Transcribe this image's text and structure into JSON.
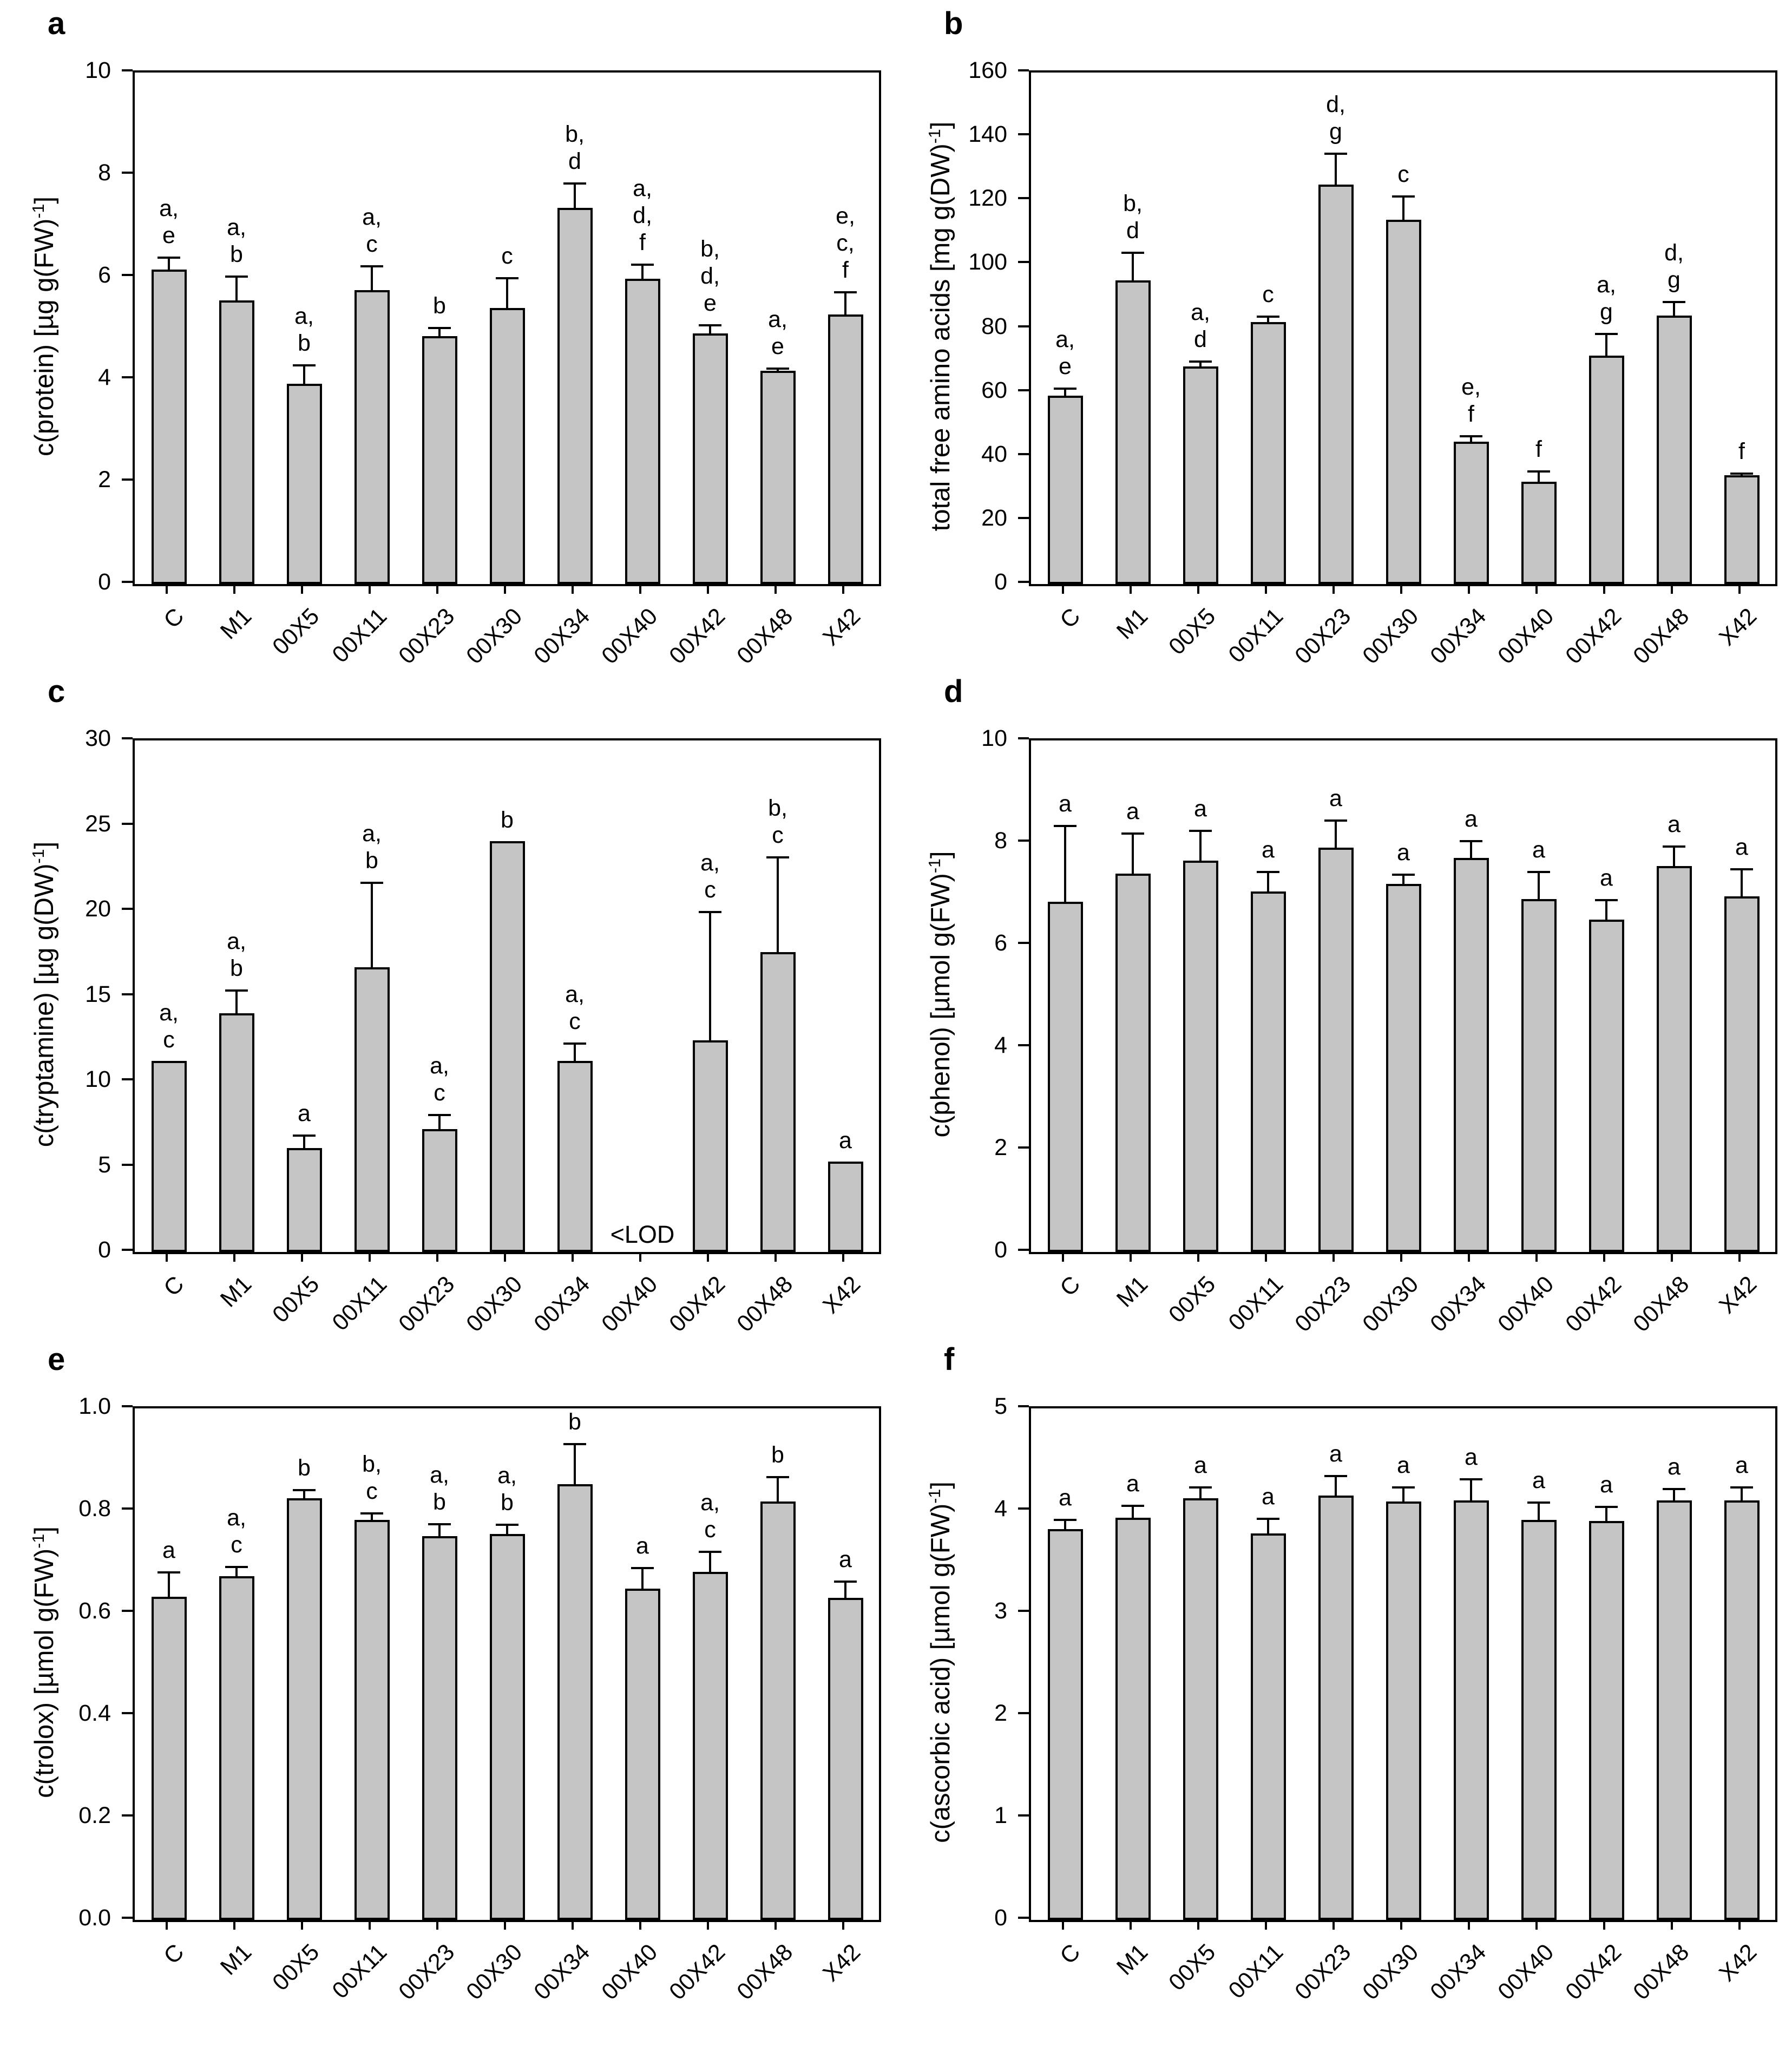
{
  "figure": {
    "type": "multi-panel-bar-figure",
    "bar_fill_color": "#c5c5c5",
    "bar_stroke_color": "#000000",
    "axis_color": "#000000",
    "text_color": "#000000",
    "background_color": "#ffffff"
  },
  "chart_data": [
    {
      "type": "bar",
      "panel_letter": "a",
      "ylabel_pre": "c(protein) [µg g(FW)",
      "ylabel_sup": "-1",
      "ylabel_post": "]",
      "ylim": [
        0,
        10
      ],
      "yticks": [
        0,
        2,
        4,
        6,
        8,
        10
      ],
      "ytick_decimals": 0,
      "grid": false,
      "legend": null,
      "categories": [
        "C",
        "M1",
        "00X5",
        "00X11",
        "00X23",
        "00X30",
        "00X34",
        "00X40",
        "00X42",
        "00X48",
        "X42"
      ],
      "values": [
        6.15,
        5.55,
        3.92,
        5.75,
        4.85,
        5.4,
        7.35,
        5.97,
        4.9,
        4.17,
        5.27
      ],
      "errors": [
        0.25,
        0.48,
        0.38,
        0.48,
        0.18,
        0.6,
        0.5,
        0.3,
        0.18,
        0.06,
        0.45
      ],
      "sig_letters": [
        [
          "a,",
          "e"
        ],
        [
          "a,",
          "b"
        ],
        [
          "a,",
          "b"
        ],
        [
          "a,",
          "c"
        ],
        [
          "b"
        ],
        [
          "c"
        ],
        [
          "b,",
          "d"
        ],
        [
          "a,",
          "d,",
          "f"
        ],
        [
          "b,",
          "d,",
          "e"
        ],
        [
          "a,",
          "e"
        ],
        [
          "e,",
          "c,",
          "f"
        ]
      ],
      "lod_note": null
    },
    {
      "type": "bar",
      "panel_letter": "b",
      "ylabel_pre": "total free amino acids [mg g(DW)",
      "ylabel_sup": "-1",
      "ylabel_post": "]",
      "ylim": [
        0,
        160
      ],
      "yticks": [
        0,
        20,
        40,
        60,
        80,
        100,
        120,
        140,
        160
      ],
      "ytick_decimals": 0,
      "grid": false,
      "legend": null,
      "categories": [
        "C",
        "M1",
        "00X5",
        "00X11",
        "00X23",
        "00X30",
        "00X34",
        "00X40",
        "00X42",
        "00X48",
        "X42"
      ],
      "values": [
        59,
        95,
        68,
        82,
        125,
        114,
        44.5,
        32,
        71.5,
        84,
        34
      ],
      "errors": [
        2.5,
        9,
        2,
        2,
        10,
        7.5,
        2,
        3.5,
        7,
        4.5,
        0.8
      ],
      "sig_letters": [
        [
          "a,",
          "e"
        ],
        [
          "b,",
          "d"
        ],
        [
          "a,",
          "d"
        ],
        [
          "c"
        ],
        [
          "d,",
          "g"
        ],
        [
          "c"
        ],
        [
          "e,",
          "f"
        ],
        [
          "f"
        ],
        [
          "a,",
          "g"
        ],
        [
          "d,",
          "g"
        ],
        [
          "f"
        ]
      ],
      "lod_note": null
    },
    {
      "type": "bar",
      "panel_letter": "c",
      "ylabel_pre": "c(tryptamine) [µg g(DW)",
      "ylabel_sup": "-1",
      "ylabel_post": "]",
      "ylim": [
        0,
        30
      ],
      "yticks": [
        0,
        5,
        10,
        15,
        20,
        25,
        30
      ],
      "ytick_decimals": 0,
      "grid": false,
      "legend": null,
      "categories": [
        "C",
        "M1",
        "00X5",
        "00X11",
        "00X23",
        "00X30",
        "00X34",
        "00X40",
        "00X42",
        "00X48",
        "X42"
      ],
      "values": [
        11.2,
        14.0,
        6.1,
        16.7,
        7.2,
        24.1,
        11.2,
        null,
        12.4,
        17.6,
        5.3
      ],
      "errors": [
        0,
        1.4,
        0.8,
        5.0,
        0.9,
        0,
        1.1,
        null,
        7.6,
        5.6,
        0
      ],
      "sig_letters": [
        [
          "a,",
          "c"
        ],
        [
          "a,",
          "b"
        ],
        [
          "a"
        ],
        [
          "a,",
          "b"
        ],
        [
          "a,",
          "c"
        ],
        [
          "b"
        ],
        [
          "a,",
          "c"
        ],
        [],
        [
          "a,",
          "c"
        ],
        [
          "b,",
          "c"
        ],
        [
          "a"
        ]
      ],
      "lod_note": {
        "text": "<LOD",
        "category_index": 7
      }
    },
    {
      "type": "bar",
      "panel_letter": "d",
      "ylabel_pre": "c(phenol) [µmol g(FW)",
      "ylabel_sup": "-1",
      "ylabel_post": "]",
      "ylim": [
        0,
        10
      ],
      "yticks": [
        0,
        2,
        4,
        6,
        8,
        10
      ],
      "ytick_decimals": 0,
      "grid": false,
      "legend": null,
      "categories": [
        "C",
        "M1",
        "00X5",
        "00X11",
        "00X23",
        "00X30",
        "00X34",
        "00X40",
        "00X42",
        "00X48",
        "X42"
      ],
      "values": [
        6.85,
        7.4,
        7.65,
        7.05,
        7.9,
        7.2,
        7.7,
        6.9,
        6.5,
        7.55,
        6.95
      ],
      "errors": [
        1.5,
        0.8,
        0.6,
        0.4,
        0.55,
        0.2,
        0.35,
        0.55,
        0.4,
        0.4,
        0.55
      ],
      "sig_letters": [
        [
          "a"
        ],
        [
          "a"
        ],
        [
          "a"
        ],
        [
          "a"
        ],
        [
          "a"
        ],
        [
          "a"
        ],
        [
          "a"
        ],
        [
          "a"
        ],
        [
          "a"
        ],
        [
          "a"
        ],
        [
          "a"
        ]
      ],
      "lod_note": null
    },
    {
      "type": "bar",
      "panel_letter": "e",
      "ylabel_pre": "c(trolox) [µmol g(FW)",
      "ylabel_sup": "-1",
      "ylabel_post": "]",
      "ylim": [
        0,
        1.0
      ],
      "yticks": [
        0,
        0.2,
        0.4,
        0.6,
        0.8,
        1.0
      ],
      "ytick_decimals": 1,
      "grid": false,
      "legend": null,
      "categories": [
        "C",
        "M1",
        "00X5",
        "00X11",
        "00X23",
        "00X30",
        "00X34",
        "00X40",
        "00X42",
        "00X48",
        "X42"
      ],
      "values": [
        0.632,
        0.672,
        0.824,
        0.782,
        0.75,
        0.755,
        0.852,
        0.648,
        0.68,
        0.818,
        0.63
      ],
      "errors": [
        0.05,
        0.02,
        0.018,
        0.015,
        0.026,
        0.02,
        0.08,
        0.042,
        0.042,
        0.05,
        0.033
      ],
      "sig_letters": [
        [
          "a"
        ],
        [
          "a,",
          "c"
        ],
        [
          "b"
        ],
        [
          "b,",
          "c"
        ],
        [
          "a,",
          "b"
        ],
        [
          "a,",
          "b"
        ],
        [
          "b"
        ],
        [
          "a"
        ],
        [
          "a,",
          "c"
        ],
        [
          "b"
        ],
        [
          "a"
        ]
      ],
      "lod_note": null
    },
    {
      "type": "bar",
      "panel_letter": "f",
      "ylabel_pre": "c(ascorbic acid) [µmol g(FW)",
      "ylabel_sup": "-1",
      "ylabel_post": "]",
      "ylim": [
        0,
        5
      ],
      "yticks": [
        0,
        1,
        2,
        3,
        4,
        5
      ],
      "ytick_decimals": 0,
      "grid": false,
      "legend": null,
      "categories": [
        "C",
        "M1",
        "00X5",
        "00X11",
        "00X23",
        "00X30",
        "00X34",
        "00X40",
        "00X42",
        "00X48",
        "X42"
      ],
      "values": [
        3.82,
        3.93,
        4.12,
        3.78,
        4.15,
        4.09,
        4.1,
        3.91,
        3.9,
        4.1,
        4.1
      ],
      "errors": [
        0.1,
        0.13,
        0.12,
        0.15,
        0.2,
        0.15,
        0.22,
        0.18,
        0.15,
        0.12,
        0.14
      ],
      "sig_letters": [
        [
          "a"
        ],
        [
          "a"
        ],
        [
          "a"
        ],
        [
          "a"
        ],
        [
          "a"
        ],
        [
          "a"
        ],
        [
          "a"
        ],
        [
          "a"
        ],
        [
          "a"
        ],
        [
          "a"
        ],
        [
          "a"
        ]
      ],
      "lod_note": null
    }
  ]
}
